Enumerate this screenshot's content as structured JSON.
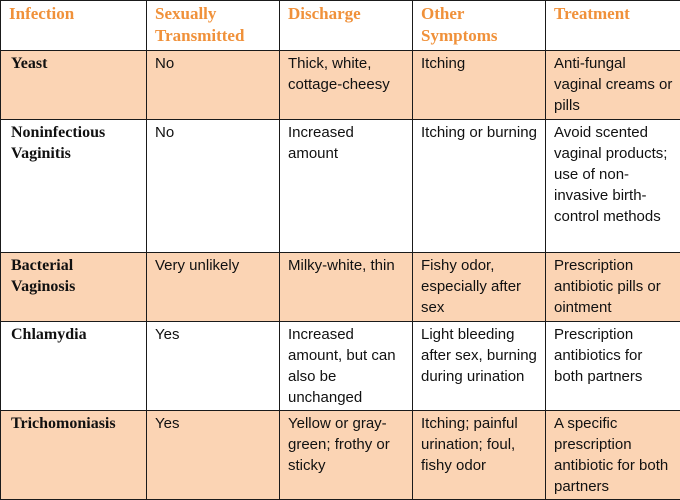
{
  "table": {
    "headers": [
      "Infection",
      "Sexually Transmitted",
      "Discharge",
      "Other Symptoms",
      "Treatment"
    ],
    "rows": [
      [
        "Yeast",
        "No",
        "Thick, white, cottage-cheesy",
        "Itching",
        "Anti-fungal vaginal creams or pills"
      ],
      [
        "Noninfectious Vaginitis",
        "No",
        "Increased amount",
        "Itching or burning",
        "Avoid scented vaginal products; use of non-invasive birth-control methods"
      ],
      [
        "Bacterial Vaginosis",
        "Very unlikely",
        "Milky-white, thin",
        "Fishy odor, especially after sex",
        "Prescription antibiotic pills or ointment"
      ],
      [
        "Chlamydia",
        "Yes",
        "Increased amount, but can also be unchanged",
        "Light bleeding after sex, burning during urination",
        "Prescription antibiotics for both partners"
      ],
      [
        "Trichomoniasis",
        "Yes",
        "Yellow or gray-green; frothy or sticky",
        "Itching; painful urination; foul, fishy odor",
        "A specific prescription antibiotic for both partners"
      ]
    ]
  },
  "colors": {
    "header_text": "#f0913a",
    "shaded_row": "#fbd4b4",
    "border": "#1a1a1a"
  }
}
